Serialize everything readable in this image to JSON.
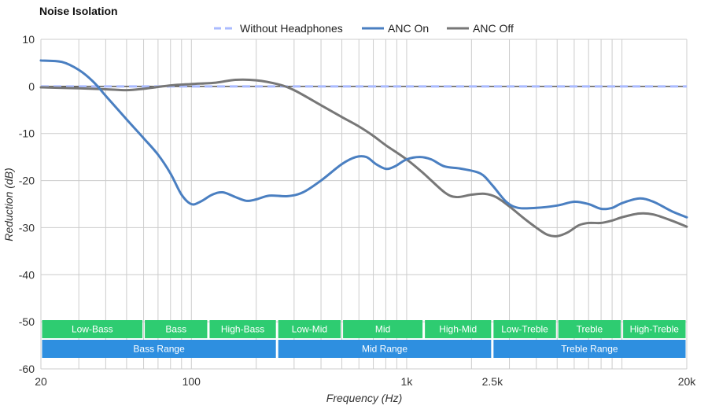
{
  "chart_data": {
    "type": "line",
    "title": "Noise Isolation",
    "xlabel": "Frequency (Hz)",
    "ylabel": "Reduction (dB)",
    "xscale": "log",
    "xlim": [
      20,
      20000
    ],
    "ylim": [
      -60,
      10
    ],
    "y_ticks": [
      10,
      0,
      -10,
      -20,
      -30,
      -40,
      -50,
      -60
    ],
    "x_ticks": [
      {
        "value": 20,
        "label": "20"
      },
      {
        "value": 100,
        "label": "100"
      },
      {
        "value": 1000,
        "label": "1k"
      },
      {
        "value": 2500,
        "label": "2.5k"
      },
      {
        "value": 20000,
        "label": "20k"
      }
    ],
    "grid": true,
    "legend_position": "top-center",
    "series": [
      {
        "name": "Without Headphones",
        "color": "#aabbff",
        "style": "dashed",
        "points": [
          [
            20,
            0
          ],
          [
            20000,
            0
          ]
        ]
      },
      {
        "name": "ANC On",
        "color": "#4a7fc1",
        "style": "solid",
        "points": [
          [
            20,
            5.5
          ],
          [
            25,
            5.2
          ],
          [
            30,
            3.5
          ],
          [
            35,
            1.0
          ],
          [
            40,
            -2.0
          ],
          [
            50,
            -7.0
          ],
          [
            60,
            -11.0
          ],
          [
            70,
            -14.5
          ],
          [
            80,
            -18.5
          ],
          [
            90,
            -23.0
          ],
          [
            100,
            -25.0
          ],
          [
            110,
            -24.5
          ],
          [
            125,
            -23.0
          ],
          [
            140,
            -22.5
          ],
          [
            160,
            -23.5
          ],
          [
            180,
            -24.3
          ],
          [
            200,
            -24.0
          ],
          [
            230,
            -23.2
          ],
          [
            280,
            -23.3
          ],
          [
            330,
            -22.5
          ],
          [
            400,
            -20.0
          ],
          [
            500,
            -16.5
          ],
          [
            580,
            -15.0
          ],
          [
            650,
            -15.0
          ],
          [
            720,
            -16.5
          ],
          [
            800,
            -17.5
          ],
          [
            880,
            -17.0
          ],
          [
            1000,
            -15.5
          ],
          [
            1150,
            -15.0
          ],
          [
            1300,
            -15.5
          ],
          [
            1500,
            -17.0
          ],
          [
            1800,
            -17.5
          ],
          [
            2200,
            -18.5
          ],
          [
            2500,
            -21.0
          ],
          [
            2900,
            -24.5
          ],
          [
            3300,
            -25.8
          ],
          [
            4000,
            -25.8
          ],
          [
            5000,
            -25.3
          ],
          [
            6000,
            -24.5
          ],
          [
            7000,
            -25.0
          ],
          [
            8000,
            -26.0
          ],
          [
            9000,
            -25.8
          ],
          [
            10000,
            -24.8
          ],
          [
            12000,
            -23.8
          ],
          [
            14000,
            -24.5
          ],
          [
            17000,
            -26.5
          ],
          [
            20000,
            -27.8
          ]
        ]
      },
      {
        "name": "ANC Off",
        "color": "#777777",
        "style": "solid",
        "points": [
          [
            20,
            -0.2
          ],
          [
            30,
            -0.4
          ],
          [
            40,
            -0.6
          ],
          [
            50,
            -0.8
          ],
          [
            60,
            -0.5
          ],
          [
            80,
            0.2
          ],
          [
            100,
            0.5
          ],
          [
            130,
            0.8
          ],
          [
            160,
            1.4
          ],
          [
            200,
            1.3
          ],
          [
            250,
            0.5
          ],
          [
            300,
            -0.8
          ],
          [
            400,
            -4.0
          ],
          [
            500,
            -6.5
          ],
          [
            600,
            -8.5
          ],
          [
            700,
            -10.5
          ],
          [
            800,
            -12.5
          ],
          [
            1000,
            -15.5
          ],
          [
            1200,
            -18.5
          ],
          [
            1500,
            -22.5
          ],
          [
            1700,
            -23.5
          ],
          [
            2000,
            -23.0
          ],
          [
            2300,
            -22.8
          ],
          [
            2600,
            -23.5
          ],
          [
            3000,
            -25.5
          ],
          [
            3500,
            -28.0
          ],
          [
            4000,
            -30.0
          ],
          [
            4500,
            -31.5
          ],
          [
            5000,
            -31.8
          ],
          [
            5600,
            -31.0
          ],
          [
            6300,
            -29.5
          ],
          [
            7000,
            -29.0
          ],
          [
            8000,
            -29.0
          ],
          [
            9000,
            -28.5
          ],
          [
            10000,
            -27.8
          ],
          [
            12000,
            -27.0
          ],
          [
            14000,
            -27.2
          ],
          [
            17000,
            -28.5
          ],
          [
            20000,
            -29.8
          ]
        ]
      }
    ],
    "bands_row1": [
      {
        "label": "Low-Bass",
        "from": 20,
        "to": 60
      },
      {
        "label": "Bass",
        "from": 60,
        "to": 120
      },
      {
        "label": "High-Bass",
        "from": 120,
        "to": 250
      },
      {
        "label": "Low-Mid",
        "from": 250,
        "to": 500
      },
      {
        "label": "Mid",
        "from": 500,
        "to": 1200
      },
      {
        "label": "High-Mid",
        "from": 1200,
        "to": 2500
      },
      {
        "label": "Low-Treble",
        "from": 2500,
        "to": 5000
      },
      {
        "label": "Treble",
        "from": 5000,
        "to": 10000
      },
      {
        "label": "High-Treble",
        "from": 10000,
        "to": 20000
      }
    ],
    "bands_row2": [
      {
        "label": "Bass Range",
        "from": 20,
        "to": 250
      },
      {
        "label": "Mid Range",
        "from": 250,
        "to": 2500
      },
      {
        "label": "Treble Range",
        "from": 2500,
        "to": 20000
      }
    ],
    "colors": {
      "band_row1": "#2ecc71",
      "band_row2": "#2e8fe0",
      "grid": "#cccccc",
      "zero_line": "#333333"
    }
  }
}
